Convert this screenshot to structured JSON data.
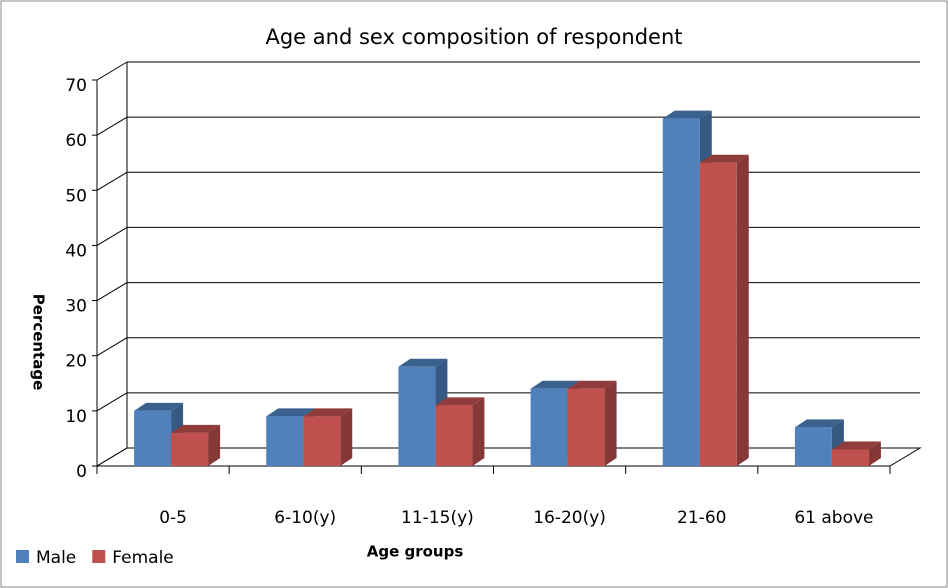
{
  "chart_data": {
    "type": "bar3d",
    "title": "Age and sex composition of respondent",
    "x_label": "Age groups",
    "y_label": "Percentage",
    "categories": [
      "0-5",
      "6-10(y)",
      "11-15(y)",
      "16-20(y)",
      "21-60",
      "61 above"
    ],
    "series": [
      {
        "name": "Male",
        "color": "#4f81bd",
        "values": [
          10,
          9,
          18,
          14,
          63,
          7
        ]
      },
      {
        "name": "Female",
        "color": "#c0504d",
        "values": [
          6,
          9,
          11,
          14,
          55,
          3
        ]
      }
    ],
    "ylim": [
      0,
      70
    ],
    "yticks": [
      0,
      10,
      20,
      30,
      40,
      50,
      60,
      70
    ],
    "grid": true,
    "legend": "bottom-left"
  }
}
